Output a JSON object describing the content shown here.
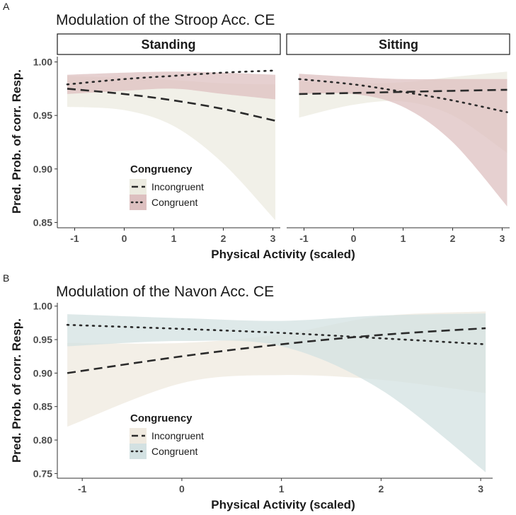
{
  "chart_data": [
    {
      "panel_letter": "A",
      "title": "Modulation of the Stroop Acc. CE",
      "type": "line",
      "xlabel": "Physical Activity (scaled)",
      "ylabel": "Pred. Prob. of corr. Resp.",
      "ylim": [
        0.845,
        1.005
      ],
      "yticks": [
        0.85,
        0.9,
        0.95,
        1.0
      ],
      "ytick_labels": [
        "0.85",
        "0.90",
        "0.95",
        "1.00"
      ],
      "xlim": [
        -1.35,
        3.15
      ],
      "xticks": [
        -1,
        0,
        1,
        2,
        3
      ],
      "xtick_labels": [
        "-1",
        "0",
        "1",
        "2",
        "3"
      ],
      "legend": {
        "title": "Congruency",
        "position": "bottom-left",
        "entries": [
          {
            "label": "Incongruent",
            "dash": "dashed",
            "fill": "#ecebe0"
          },
          {
            "label": "Congruent",
            "dash": "dotted",
            "fill": "#ddc0c0"
          }
        ]
      },
      "facets": [
        {
          "label": "Standing",
          "series": [
            {
              "name": "Incongruent",
              "dash": "dashed",
              "band_color": "#ecebe0",
              "band_opacity": 0.75,
              "x": [
                -1.15,
                0,
                1,
                2,
                3.05
              ],
              "y": [
                0.975,
                0.97,
                0.964,
                0.956,
                0.945
              ],
              "lower": [
                0.958,
                0.955,
                0.94,
                0.905,
                0.852
              ],
              "upper": [
                0.987,
                0.985,
                0.983,
                0.98,
                0.979
              ]
            },
            {
              "name": "Congruent",
              "dash": "dotted",
              "band_color": "#ddc0c0",
              "band_opacity": 0.75,
              "x": [
                -1.15,
                0,
                1,
                2,
                3.05
              ],
              "y": [
                0.979,
                0.984,
                0.987,
                0.99,
                0.992
              ],
              "lower": [
                0.97,
                0.973,
                0.975,
                0.97,
                0.965
              ],
              "upper": [
                0.988,
                0.99,
                0.991,
                0.99,
                0.988
              ]
            }
          ]
        },
        {
          "label": "Sitting",
          "series": [
            {
              "name": "Incongruent",
              "dash": "dashed",
              "band_color": "#ecebe0",
              "band_opacity": 0.75,
              "x": [
                -1.1,
                0,
                1,
                2,
                3.1
              ],
              "y": [
                0.97,
                0.971,
                0.972,
                0.973,
                0.974
              ],
              "lower": [
                0.948,
                0.96,
                0.963,
                0.95,
                0.915
              ],
              "upper": [
                0.982,
                0.98,
                0.981,
                0.986,
                0.991
              ]
            },
            {
              "name": "Congruent",
              "dash": "dotted",
              "band_color": "#ddc0c0",
              "band_opacity": 0.75,
              "x": [
                -1.1,
                0,
                1,
                2,
                3.1
              ],
              "y": [
                0.984,
                0.979,
                0.972,
                0.964,
                0.953
              ],
              "lower": [
                0.97,
                0.97,
                0.958,
                0.925,
                0.865
              ],
              "upper": [
                0.989,
                0.986,
                0.984,
                0.984,
                0.984
              ]
            }
          ]
        }
      ]
    },
    {
      "panel_letter": "B",
      "title": "Modulation of the Navon Acc. CE",
      "type": "line",
      "xlabel": "Physical Activity (scaled)",
      "ylabel": "Pred. Prob. of corr. Resp.",
      "ylim": [
        0.743,
        1.005
      ],
      "yticks": [
        0.75,
        0.8,
        0.85,
        0.9,
        0.95,
        1.0
      ],
      "ytick_labels": [
        "0.75",
        "0.80",
        "0.85",
        "0.90",
        "0.95",
        "1.00"
      ],
      "xlim": [
        -1.25,
        3.12
      ],
      "xticks": [
        -1,
        0,
        1,
        2,
        3
      ],
      "xtick_labels": [
        "-1",
        "0",
        "1",
        "2",
        "3"
      ],
      "legend": {
        "title": "Congruency",
        "position": "bottom-left",
        "entries": [
          {
            "label": "Incongruent",
            "dash": "dashed",
            "fill": "#efe9df"
          },
          {
            "label": "Congruent",
            "dash": "dotted",
            "fill": "#d3e1e2"
          }
        ]
      },
      "series": [
        {
          "name": "Incongruent",
          "dash": "dashed",
          "band_color": "#efe9df",
          "band_opacity": 0.75,
          "x": [
            -1.15,
            0,
            1,
            2,
            3.05
          ],
          "y": [
            0.9,
            0.925,
            0.943,
            0.957,
            0.967
          ],
          "lower": [
            0.82,
            0.885,
            0.897,
            0.89,
            0.87
          ],
          "upper": [
            0.945,
            0.945,
            0.958,
            0.985,
            0.992
          ]
        },
        {
          "name": "Congruent",
          "dash": "dotted",
          "band_color": "#d3e1e2",
          "band_opacity": 0.75,
          "x": [
            -1.15,
            0,
            1,
            2,
            3.05
          ],
          "y": [
            0.972,
            0.966,
            0.96,
            0.952,
            0.943
          ],
          "lower": [
            0.94,
            0.948,
            0.94,
            0.875,
            0.752
          ],
          "upper": [
            0.988,
            0.982,
            0.978,
            0.986,
            0.989
          ]
        }
      ]
    }
  ]
}
